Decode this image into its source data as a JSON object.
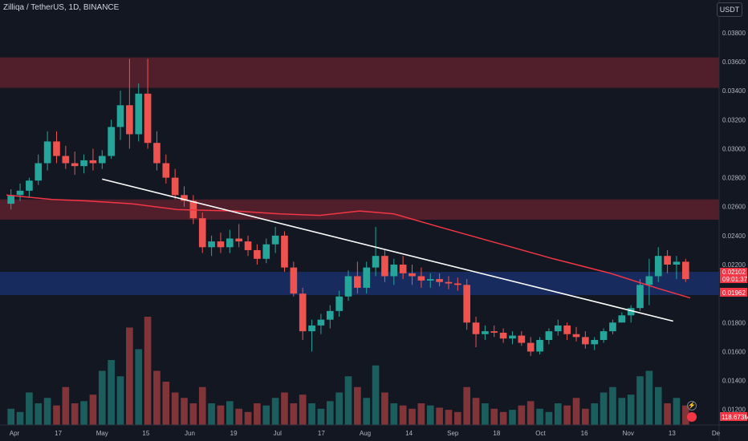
{
  "header": {
    "symbol_title": "Zilliqa / TetherUS, 1D, BINANCE",
    "currency": "USDT"
  },
  "chart_data": {
    "type": "candlestick",
    "title": "Zilliqa / TetherUS, 1D, BINANCE",
    "y_ticks": [
      "0.03800",
      "0.03600",
      "0.03400",
      "0.03200",
      "0.03000",
      "0.02800",
      "0.02600",
      "0.02400",
      "0.02200",
      "0.01800",
      "0.01600",
      "0.01400",
      "0.01200"
    ],
    "ylim": [
      0.0106,
      0.0396
    ],
    "x_ticks": [
      "Apr",
      "17",
      "May",
      "15",
      "Jun",
      "19",
      "Jul",
      "17",
      "Aug",
      "14",
      "Sep",
      "18",
      "Oct",
      "16",
      "Nov",
      "13",
      "De"
    ],
    "colors": {
      "up": "#26a69a",
      "down": "#ef5350",
      "ma": "#f23645",
      "trendline": "#ffffff",
      "supply_zone": "#f23645",
      "demand_zone": "#2962ff"
    },
    "candles_ohlc_approx": [
      [
        0.0262,
        0.0272,
        0.0258,
        0.0268
      ],
      [
        0.0268,
        0.0276,
        0.0264,
        0.0271
      ],
      [
        0.0271,
        0.028,
        0.0266,
        0.0278
      ],
      [
        0.0278,
        0.0296,
        0.0275,
        0.029
      ],
      [
        0.029,
        0.0312,
        0.0285,
        0.0305
      ],
      [
        0.0305,
        0.0312,
        0.029,
        0.0295
      ],
      [
        0.0295,
        0.0302,
        0.0286,
        0.029
      ],
      [
        0.029,
        0.0298,
        0.0282,
        0.0288
      ],
      [
        0.0288,
        0.0296,
        0.0283,
        0.0292
      ],
      [
        0.0292,
        0.03,
        0.0285,
        0.029
      ],
      [
        0.029,
        0.0299,
        0.0286,
        0.0295
      ],
      [
        0.0295,
        0.032,
        0.0293,
        0.0315
      ],
      [
        0.0315,
        0.034,
        0.0306,
        0.033
      ],
      [
        0.033,
        0.0362,
        0.03,
        0.031
      ],
      [
        0.031,
        0.0345,
        0.0305,
        0.0338
      ],
      [
        0.0338,
        0.0362,
        0.03,
        0.0304
      ],
      [
        0.0304,
        0.0312,
        0.0285,
        0.029
      ],
      [
        0.029,
        0.0296,
        0.0276,
        0.028
      ],
      [
        0.028,
        0.0286,
        0.0265,
        0.0268
      ],
      [
        0.0268,
        0.0274,
        0.026,
        0.0264
      ],
      [
        0.0264,
        0.0268,
        0.0248,
        0.0252
      ],
      [
        0.0252,
        0.0256,
        0.0228,
        0.0232
      ],
      [
        0.0232,
        0.024,
        0.0226,
        0.0236
      ],
      [
        0.0236,
        0.0242,
        0.0228,
        0.0232
      ],
      [
        0.0232,
        0.0244,
        0.0228,
        0.0238
      ],
      [
        0.0238,
        0.0248,
        0.0232,
        0.0236
      ],
      [
        0.0236,
        0.024,
        0.0226,
        0.023
      ],
      [
        0.023,
        0.0234,
        0.022,
        0.0224
      ],
      [
        0.0224,
        0.0238,
        0.0221,
        0.0234
      ],
      [
        0.0234,
        0.0246,
        0.0228,
        0.024
      ],
      [
        0.024,
        0.0243,
        0.0215,
        0.0218
      ],
      [
        0.0218,
        0.0222,
        0.0198,
        0.02
      ],
      [
        0.02,
        0.0204,
        0.0168,
        0.0174
      ],
      [
        0.0174,
        0.0182,
        0.016,
        0.0178
      ],
      [
        0.0178,
        0.0186,
        0.0172,
        0.0182
      ],
      [
        0.0182,
        0.0192,
        0.0176,
        0.0188
      ],
      [
        0.0188,
        0.0202,
        0.0184,
        0.0198
      ],
      [
        0.0198,
        0.0216,
        0.0195,
        0.0212
      ],
      [
        0.0212,
        0.0222,
        0.02,
        0.0204
      ],
      [
        0.0204,
        0.0222,
        0.02,
        0.0218
      ],
      [
        0.0218,
        0.0246,
        0.0212,
        0.0226
      ],
      [
        0.0226,
        0.023,
        0.0208,
        0.0212
      ],
      [
        0.0212,
        0.0224,
        0.0206,
        0.022
      ],
      [
        0.022,
        0.0226,
        0.021,
        0.0214
      ],
      [
        0.0214,
        0.022,
        0.0206,
        0.0212
      ],
      [
        0.0212,
        0.0218,
        0.0204,
        0.0209
      ],
      [
        0.0209,
        0.0214,
        0.0204,
        0.021
      ],
      [
        0.021,
        0.0214,
        0.0205,
        0.0208
      ],
      [
        0.0208,
        0.0212,
        0.0203,
        0.0207
      ],
      [
        0.0207,
        0.0211,
        0.0202,
        0.0206
      ],
      [
        0.0206,
        0.021,
        0.0175,
        0.018
      ],
      [
        0.018,
        0.0184,
        0.0163,
        0.0172
      ],
      [
        0.0172,
        0.0178,
        0.0168,
        0.0174
      ],
      [
        0.0174,
        0.0178,
        0.017,
        0.0173
      ],
      [
        0.0173,
        0.0176,
        0.0166,
        0.0169
      ],
      [
        0.0169,
        0.0174,
        0.0165,
        0.0171
      ],
      [
        0.0171,
        0.0174,
        0.0164,
        0.0166
      ],
      [
        0.0166,
        0.017,
        0.0157,
        0.016
      ],
      [
        0.016,
        0.017,
        0.0158,
        0.0168
      ],
      [
        0.0168,
        0.0176,
        0.0165,
        0.0174
      ],
      [
        0.0174,
        0.0182,
        0.0171,
        0.0178
      ],
      [
        0.0178,
        0.018,
        0.0168,
        0.0172
      ],
      [
        0.0172,
        0.0177,
        0.0167,
        0.017
      ],
      [
        0.017,
        0.0174,
        0.0162,
        0.0165
      ],
      [
        0.0165,
        0.017,
        0.0161,
        0.0168
      ],
      [
        0.0168,
        0.0176,
        0.0166,
        0.0174
      ],
      [
        0.0174,
        0.0182,
        0.0172,
        0.018
      ],
      [
        0.018,
        0.0187,
        0.0183,
        0.0185
      ],
      [
        0.0185,
        0.0192,
        0.018,
        0.019
      ],
      [
        0.019,
        0.021,
        0.0188,
        0.0206
      ],
      [
        0.0206,
        0.0224,
        0.0192,
        0.0212
      ],
      [
        0.0212,
        0.0232,
        0.0208,
        0.0226
      ],
      [
        0.0226,
        0.023,
        0.0214,
        0.022
      ],
      [
        0.022,
        0.0226,
        0.021,
        0.0222
      ],
      [
        0.0222,
        0.0224,
        0.0208,
        0.021
      ]
    ],
    "volume_relative": [
      0.15,
      0.12,
      0.3,
      0.2,
      0.25,
      0.18,
      0.35,
      0.2,
      0.22,
      0.28,
      0.5,
      0.6,
      0.45,
      0.9,
      0.7,
      1.0,
      0.5,
      0.4,
      0.3,
      0.25,
      0.2,
      0.35,
      0.2,
      0.18,
      0.22,
      0.15,
      0.12,
      0.2,
      0.18,
      0.25,
      0.3,
      0.2,
      0.28,
      0.2,
      0.15,
      0.22,
      0.3,
      0.45,
      0.35,
      0.25,
      0.55,
      0.3,
      0.2,
      0.18,
      0.15,
      0.2,
      0.18,
      0.16,
      0.14,
      0.12,
      0.35,
      0.25,
      0.2,
      0.15,
      0.12,
      0.14,
      0.18,
      0.22,
      0.15,
      0.12,
      0.2,
      0.18,
      0.25,
      0.15,
      0.2,
      0.3,
      0.35,
      0.25,
      0.28,
      0.45,
      0.5,
      0.35,
      0.2,
      0.25,
      0.18
    ],
    "moving_average": [
      [
        0,
        0.0268
      ],
      [
        8,
        0.0265
      ],
      [
        14,
        0.0264
      ],
      [
        22,
        0.0262
      ],
      [
        30,
        0.0258
      ],
      [
        40,
        0.0257
      ],
      [
        48,
        0.0255
      ],
      [
        55,
        0.0254
      ],
      [
        62,
        0.0257
      ],
      [
        68,
        0.0255
      ],
      [
        76,
        0.0246
      ],
      [
        86,
        0.0235
      ],
      [
        96,
        0.0224
      ],
      [
        106,
        0.0214
      ],
      [
        114,
        0.0204
      ],
      [
        120,
        0.0197
      ]
    ],
    "trendline": {
      "from": [
        "May",
        0.0279
      ],
      "to": [
        "Nov",
        0.0181
      ]
    },
    "zones": [
      {
        "kind": "supply",
        "from": 0.0342,
        "to": 0.0363
      },
      {
        "kind": "supply",
        "from": 0.0251,
        "to": 0.0265
      },
      {
        "kind": "demand",
        "from": 0.0199,
        "to": 0.0215
      }
    ],
    "last_price": "0.02102",
    "countdown": "09:01:37",
    "ma_value": "0.01962",
    "volume_value": "118.673M"
  }
}
